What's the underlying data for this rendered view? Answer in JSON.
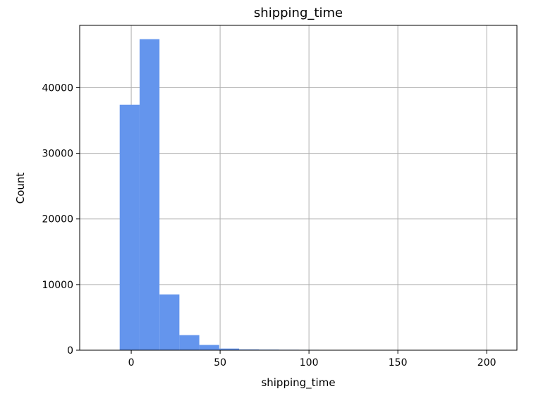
{
  "chart_data": {
    "type": "bar",
    "title": "shipping_time",
    "xlabel": "shipping_time",
    "ylabel": "Count",
    "xlim": [
      -29,
      217
    ],
    "ylim": [
      0,
      49500
    ],
    "x_ticks": [
      0,
      50,
      100,
      150,
      200
    ],
    "y_ticks": [
      0,
      10000,
      20000,
      30000,
      40000
    ],
    "grid": true,
    "bar_color": "#6495ED",
    "bins": [
      {
        "start": -6.5,
        "end": 4.7,
        "value": 37400
      },
      {
        "start": 4.7,
        "end": 15.9,
        "value": 47400
      },
      {
        "start": 15.9,
        "end": 27.1,
        "value": 8500
      },
      {
        "start": 27.1,
        "end": 38.3,
        "value": 2300
      },
      {
        "start": 38.3,
        "end": 49.5,
        "value": 800
      },
      {
        "start": 49.5,
        "end": 60.7,
        "value": 250
      },
      {
        "start": 60.7,
        "end": 71.9,
        "value": 120
      },
      {
        "start": 71.9,
        "end": 83.1,
        "value": 90
      },
      {
        "start": 83.1,
        "end": 94.3,
        "value": 70
      },
      {
        "start": 94.3,
        "end": 105.5,
        "value": 60
      },
      {
        "start": 105.5,
        "end": 116.7,
        "value": 20
      },
      {
        "start": 116.7,
        "end": 127.9,
        "value": 12
      },
      {
        "start": 127.9,
        "end": 139.1,
        "value": 8
      },
      {
        "start": 139.1,
        "end": 150.3,
        "value": 6
      },
      {
        "start": 150.3,
        "end": 161.5,
        "value": 4
      },
      {
        "start": 161.5,
        "end": 172.7,
        "value": 3
      },
      {
        "start": 172.7,
        "end": 183.9,
        "value": 2
      },
      {
        "start": 183.9,
        "end": 195.1,
        "value": 2
      },
      {
        "start": 195.1,
        "end": 206.3,
        "value": 1
      }
    ]
  }
}
